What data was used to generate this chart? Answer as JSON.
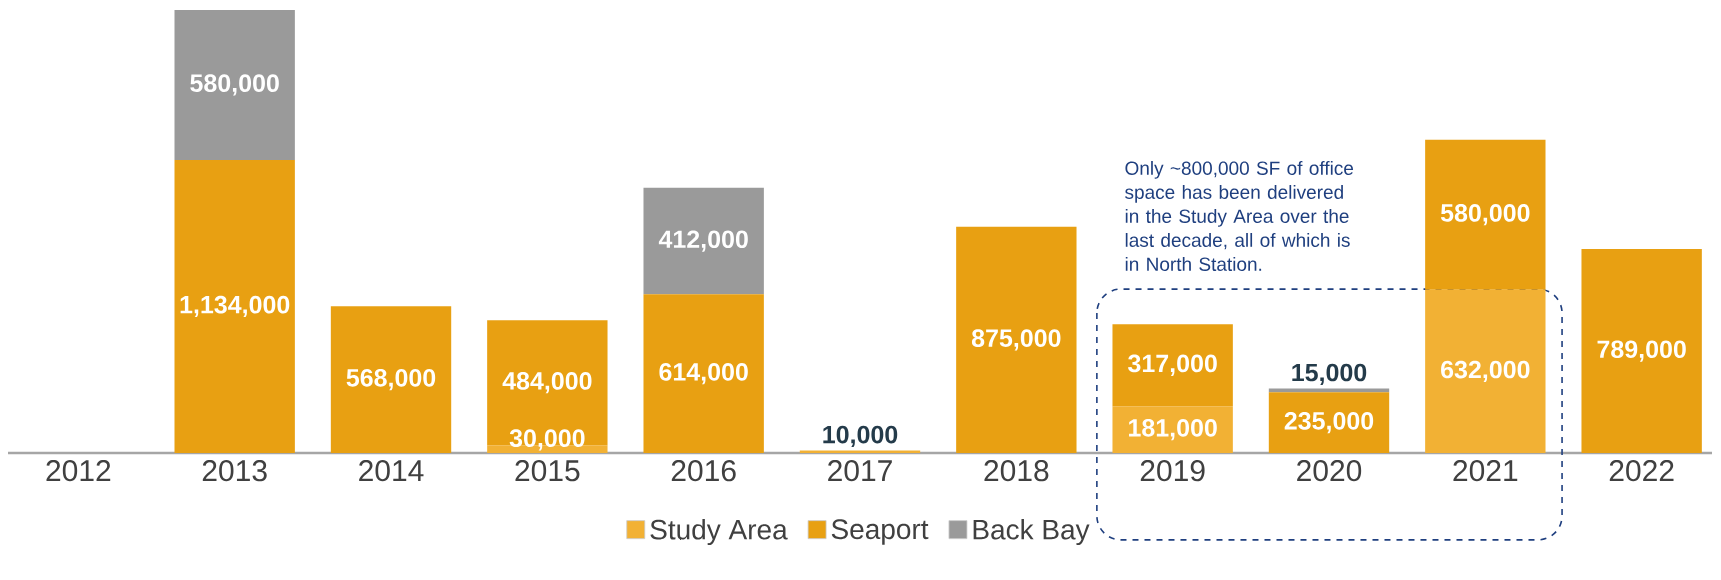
{
  "chart_data": {
    "type": "bar",
    "stacked": true,
    "categories": [
      "2012",
      "2013",
      "2014",
      "2015",
      "2016",
      "2017",
      "2018",
      "2019",
      "2020",
      "2021",
      "2022"
    ],
    "series": [
      {
        "name": "Study Area",
        "color": "#f2b134",
        "values": [
          null,
          null,
          null,
          30000,
          null,
          10000,
          null,
          181000,
          null,
          632000,
          null
        ],
        "value_labels": [
          null,
          null,
          null,
          "30,000",
          null,
          "10,000",
          null,
          "181,000",
          null,
          "632,000",
          null
        ]
      },
      {
        "name": "Seaport",
        "color": "#e8a012",
        "values": [
          null,
          1134000,
          568000,
          484000,
          614000,
          null,
          875000,
          317000,
          235000,
          580000,
          789000
        ],
        "value_labels": [
          null,
          "1,134,000",
          "568,000",
          "484,000",
          "614,000",
          null,
          "875,000",
          "317,000",
          "235,000",
          "580,000",
          "789,000"
        ]
      },
      {
        "name": "Back Bay",
        "color": "#9a9a9a",
        "values": [
          null,
          580000,
          null,
          null,
          412000,
          null,
          null,
          null,
          15000,
          null,
          null
        ],
        "value_labels": [
          null,
          "580,000",
          null,
          null,
          "412,000",
          null,
          null,
          null,
          "15,000",
          null,
          null
        ]
      }
    ],
    "legend": "bottom",
    "tick_labels": "x",
    "annotations": [
      "Only ~800,000 SF of office space has been delivered in the Study Area over the last decade, all of which is in North Station."
    ]
  }
}
